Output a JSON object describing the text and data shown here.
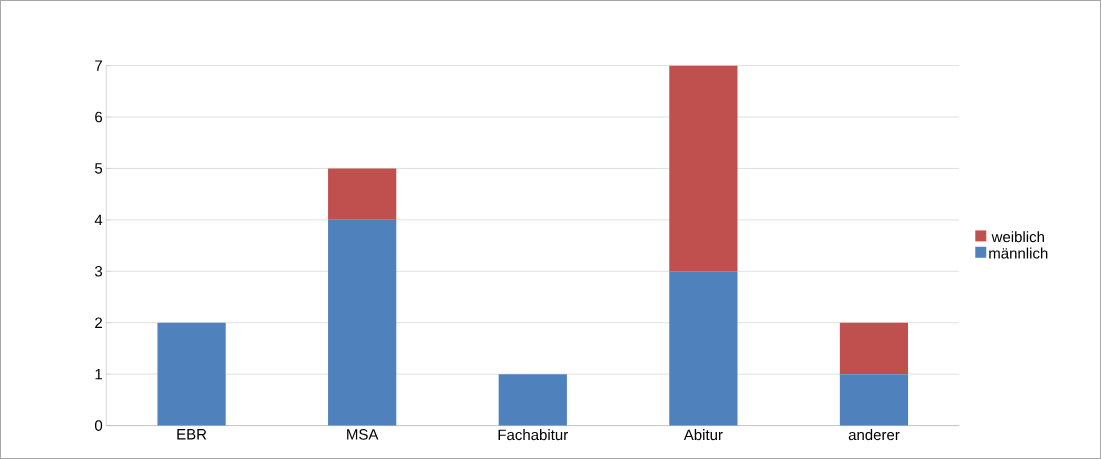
{
  "chart_data": {
    "type": "bar",
    "stacked": true,
    "categories": [
      "EBR",
      "MSA",
      "Fachabitur",
      "Abitur",
      "anderer"
    ],
    "series": [
      {
        "name": "männlich",
        "color": "#4f81bd",
        "values": [
          2,
          4,
          1,
          3,
          1
        ]
      },
      {
        "name": "weiblich",
        "color": "#c0504d",
        "values": [
          0,
          1,
          0,
          4,
          1
        ]
      }
    ],
    "ylim": [
      0,
      7
    ],
    "yticks": [
      0,
      1,
      2,
      3,
      4,
      5,
      6,
      7
    ],
    "grid": "y",
    "legend": "right"
  }
}
